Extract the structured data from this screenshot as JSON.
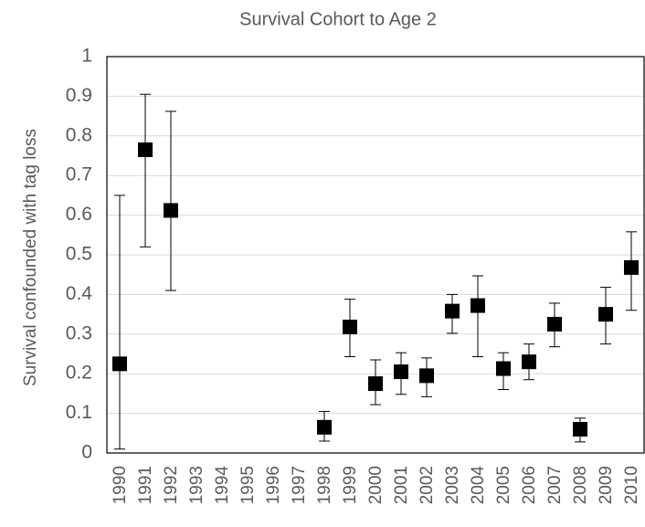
{
  "chart_data": {
    "type": "errorbar",
    "title": "Survival Cohort to Age 2",
    "y_label": "Survival confounded with tag loss",
    "categories": [
      "1990",
      "1991",
      "1992",
      "1993",
      "1994",
      "1995",
      "1996",
      "1997",
      "1998",
      "1999",
      "2000",
      "2001",
      "2002",
      "2003",
      "2004",
      "2005",
      "2006",
      "2007",
      "2008",
      "2009",
      "2010"
    ],
    "values": [
      0.225,
      0.765,
      0.612,
      null,
      null,
      null,
      null,
      null,
      0.065,
      0.318,
      0.175,
      0.205,
      0.195,
      0.358,
      0.372,
      0.213,
      0.23,
      0.325,
      0.06,
      0.35,
      0.468
    ],
    "lower": [
      0.01,
      0.52,
      0.41,
      null,
      null,
      null,
      null,
      null,
      0.03,
      0.243,
      0.122,
      0.148,
      0.142,
      0.302,
      0.243,
      0.16,
      0.185,
      0.268,
      0.028,
      0.275,
      0.36
    ],
    "upper": [
      0.65,
      0.905,
      0.862,
      null,
      null,
      null,
      null,
      null,
      0.105,
      0.388,
      0.235,
      0.253,
      0.24,
      0.4,
      0.447,
      0.253,
      0.275,
      0.378,
      0.088,
      0.418,
      0.558
    ],
    "color": "#000000",
    "ylim": [
      0,
      1
    ],
    "yticks": [
      0,
      0.1,
      0.2,
      0.3,
      0.4,
      0.5,
      0.6,
      0.7,
      0.8,
      0.9,
      1
    ],
    "grid": true
  }
}
